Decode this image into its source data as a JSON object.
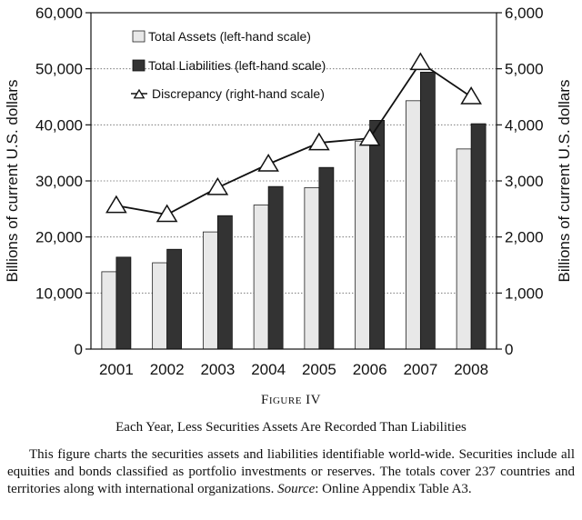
{
  "chart_data": {
    "type": "bar",
    "categories": [
      "2001",
      "2002",
      "2003",
      "2004",
      "2005",
      "2006",
      "2007",
      "2008"
    ],
    "series": [
      {
        "name": "Total Assets (left-hand scale)",
        "axis": "left",
        "kind": "bar",
        "color": "#e8e8e8",
        "values": [
          13800,
          15400,
          20900,
          25700,
          28800,
          37100,
          44300,
          35700
        ]
      },
      {
        "name": "Total Liabilities (left-hand scale)",
        "axis": "left",
        "kind": "bar",
        "color": "#333333",
        "values": [
          16400,
          17800,
          23800,
          29000,
          32400,
          40800,
          49400,
          40200
        ]
      },
      {
        "name": "Discrepancy (right-hand scale)",
        "axis": "right",
        "kind": "line",
        "marker": "triangle",
        "values": [
          2560,
          2400,
          2880,
          3300,
          3680,
          3760,
          5110,
          4500
        ]
      }
    ],
    "ylabel": "Billions of current U.S. dollars",
    "y2label": "Billions of current U.S. dollars",
    "ylim": [
      0,
      60000
    ],
    "y2lim": [
      0,
      6000
    ],
    "yticks": [
      "0",
      "10,000",
      "20,000",
      "30,000",
      "40,000",
      "50,000",
      "60,000"
    ],
    "y2ticks": [
      "0",
      "1,000",
      "2,000",
      "3,000",
      "4,000",
      "5,000",
      "6,000"
    ],
    "grid": "horizontal dotted",
    "legend": "top-left"
  },
  "caption": {
    "figure_label": "Figure IV",
    "title": "Each Year, Less Securities Assets Are Recorded Than Liabilities",
    "desc_main": "This figure charts the securities assets and liabilities identifiable world-wide. Securities include all equities and bonds classified as portfolio investments or reserves. The totals cover 237 countries and territories along with international organizations.",
    "source_label": "Source",
    "source_text": ": Online Appendix Table A3."
  }
}
